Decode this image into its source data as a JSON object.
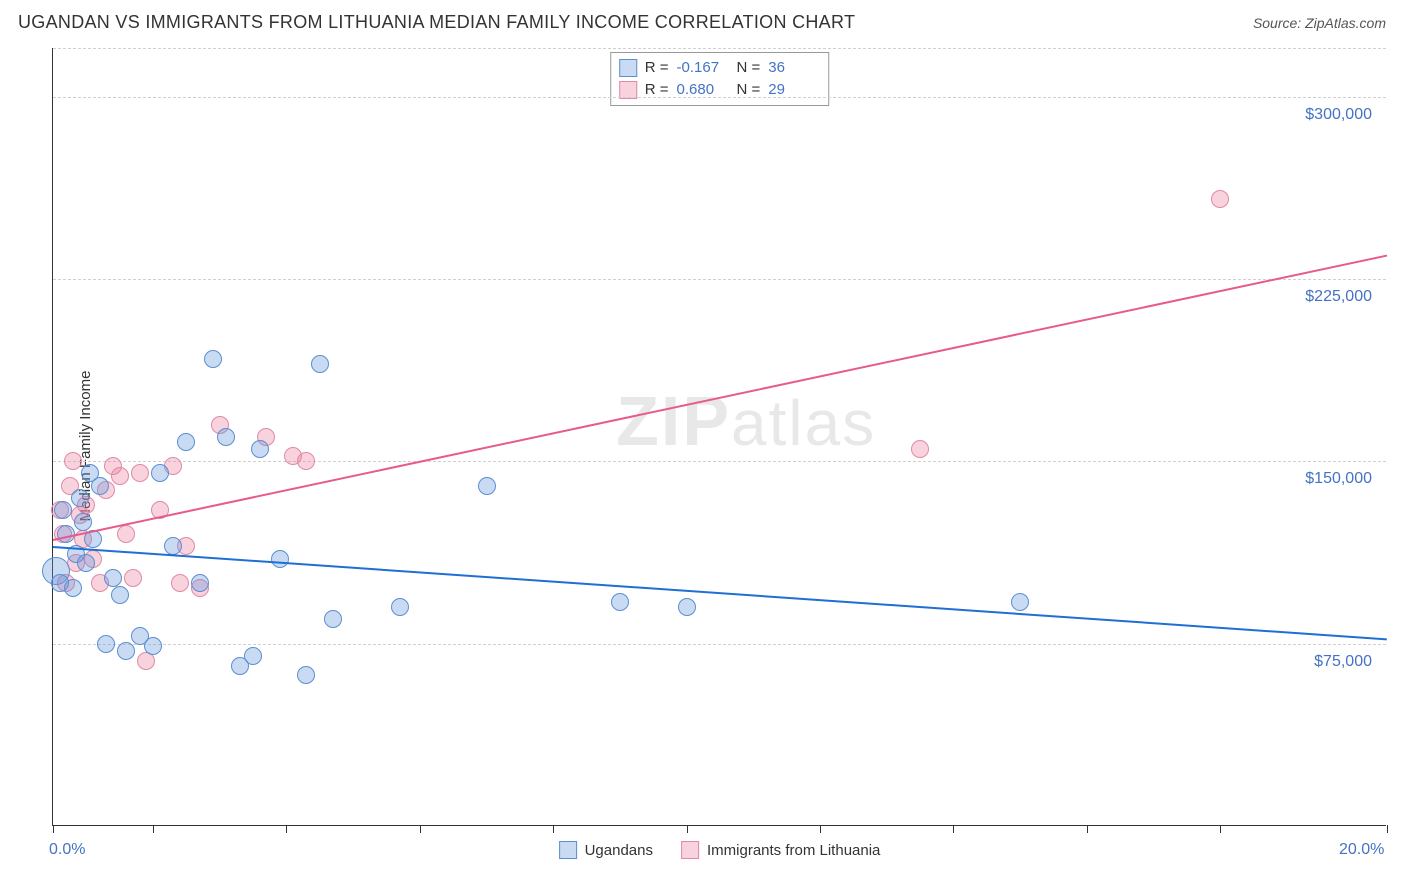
{
  "header": {
    "title": "UGANDAN VS IMMIGRANTS FROM LITHUANIA MEDIAN FAMILY INCOME CORRELATION CHART",
    "source_label": "Source: ZipAtlas.com"
  },
  "watermark": {
    "z": "ZIP",
    "rest": "atlas"
  },
  "ylabel": "Median Family Income",
  "chart": {
    "type": "scatter",
    "xlim": [
      0,
      20
    ],
    "ylim": [
      0,
      320000
    ],
    "x_ticks": [
      0,
      1.5,
      3.5,
      5.5,
      7.5,
      9.5,
      11.5,
      13.5,
      15.5,
      17.5,
      20
    ],
    "x_tick_labels": {
      "0": "0.0%",
      "20": "20.0%"
    },
    "y_gridlines": [
      75000,
      150000,
      225000,
      300000,
      320000
    ],
    "y_tick_labels": {
      "75000": "$75,000",
      "150000": "$150,000",
      "225000": "$225,000",
      "300000": "$300,000"
    },
    "background_color": "#ffffff",
    "grid_color": "#d0d0d0",
    "axis_color": "#333333",
    "label_color": "#4472c4",
    "series": {
      "ugandans": {
        "label": "Ugandans",
        "fill_color": "rgba(100,150,220,0.35)",
        "stroke_color": "#5b8fd0",
        "trend_color": "#1f6fd4",
        "marker_radius": 9,
        "R": "-0.167",
        "N": "36",
        "trend": {
          "x1": 0,
          "y1": 115000,
          "x2": 20,
          "y2": 77000
        },
        "points": [
          {
            "x": 0.05,
            "y": 105000,
            "r": 14
          },
          {
            "x": 0.1,
            "y": 100000
          },
          {
            "x": 0.15,
            "y": 130000
          },
          {
            "x": 0.2,
            "y": 120000
          },
          {
            "x": 0.3,
            "y": 98000
          },
          {
            "x": 0.35,
            "y": 112000
          },
          {
            "x": 0.4,
            "y": 135000
          },
          {
            "x": 0.45,
            "y": 125000
          },
          {
            "x": 0.5,
            "y": 108000
          },
          {
            "x": 0.55,
            "y": 145000
          },
          {
            "x": 0.6,
            "y": 118000
          },
          {
            "x": 0.7,
            "y": 140000
          },
          {
            "x": 0.8,
            "y": 75000
          },
          {
            "x": 0.9,
            "y": 102000
          },
          {
            "x": 1.0,
            "y": 95000
          },
          {
            "x": 1.1,
            "y": 72000
          },
          {
            "x": 1.3,
            "y": 78000
          },
          {
            "x": 1.5,
            "y": 74000
          },
          {
            "x": 1.6,
            "y": 145000
          },
          {
            "x": 1.8,
            "y": 115000
          },
          {
            "x": 2.0,
            "y": 158000
          },
          {
            "x": 2.2,
            "y": 100000
          },
          {
            "x": 2.4,
            "y": 192000
          },
          {
            "x": 2.6,
            "y": 160000
          },
          {
            "x": 2.8,
            "y": 66000
          },
          {
            "x": 3.0,
            "y": 70000
          },
          {
            "x": 3.1,
            "y": 155000
          },
          {
            "x": 3.4,
            "y": 110000
          },
          {
            "x": 3.8,
            "y": 62000
          },
          {
            "x": 4.0,
            "y": 190000
          },
          {
            "x": 4.2,
            "y": 85000
          },
          {
            "x": 5.2,
            "y": 90000
          },
          {
            "x": 6.5,
            "y": 140000
          },
          {
            "x": 8.5,
            "y": 92000
          },
          {
            "x": 9.5,
            "y": 90000
          },
          {
            "x": 14.5,
            "y": 92000
          }
        ]
      },
      "lithuania": {
        "label": "Immigrants from Lithuania",
        "fill_color": "rgba(235,130,160,0.35)",
        "stroke_color": "#e08aa5",
        "trend_color": "#e75a8a",
        "marker_radius": 9,
        "R": "0.680",
        "N": "29",
        "trend": {
          "x1": 0,
          "y1": 118000,
          "x2": 20,
          "y2": 235000
        },
        "points": [
          {
            "x": 0.1,
            "y": 130000
          },
          {
            "x": 0.15,
            "y": 120000
          },
          {
            "x": 0.2,
            "y": 100000
          },
          {
            "x": 0.25,
            "y": 140000
          },
          {
            "x": 0.3,
            "y": 150000
          },
          {
            "x": 0.35,
            "y": 108000
          },
          {
            "x": 0.4,
            "y": 128000
          },
          {
            "x": 0.45,
            "y": 118000
          },
          {
            "x": 0.5,
            "y": 132000
          },
          {
            "x": 0.6,
            "y": 110000
          },
          {
            "x": 0.7,
            "y": 100000
          },
          {
            "x": 0.8,
            "y": 138000
          },
          {
            "x": 0.9,
            "y": 148000
          },
          {
            "x": 1.0,
            "y": 144000
          },
          {
            "x": 1.1,
            "y": 120000
          },
          {
            "x": 1.2,
            "y": 102000
          },
          {
            "x": 1.3,
            "y": 145000
          },
          {
            "x": 1.4,
            "y": 68000
          },
          {
            "x": 1.6,
            "y": 130000
          },
          {
            "x": 1.8,
            "y": 148000
          },
          {
            "x": 1.9,
            "y": 100000
          },
          {
            "x": 2.0,
            "y": 115000
          },
          {
            "x": 2.2,
            "y": 98000
          },
          {
            "x": 2.5,
            "y": 165000
          },
          {
            "x": 3.2,
            "y": 160000
          },
          {
            "x": 3.6,
            "y": 152000
          },
          {
            "x": 3.8,
            "y": 150000
          },
          {
            "x": 13.0,
            "y": 155000
          },
          {
            "x": 17.5,
            "y": 258000
          }
        ]
      }
    }
  }
}
